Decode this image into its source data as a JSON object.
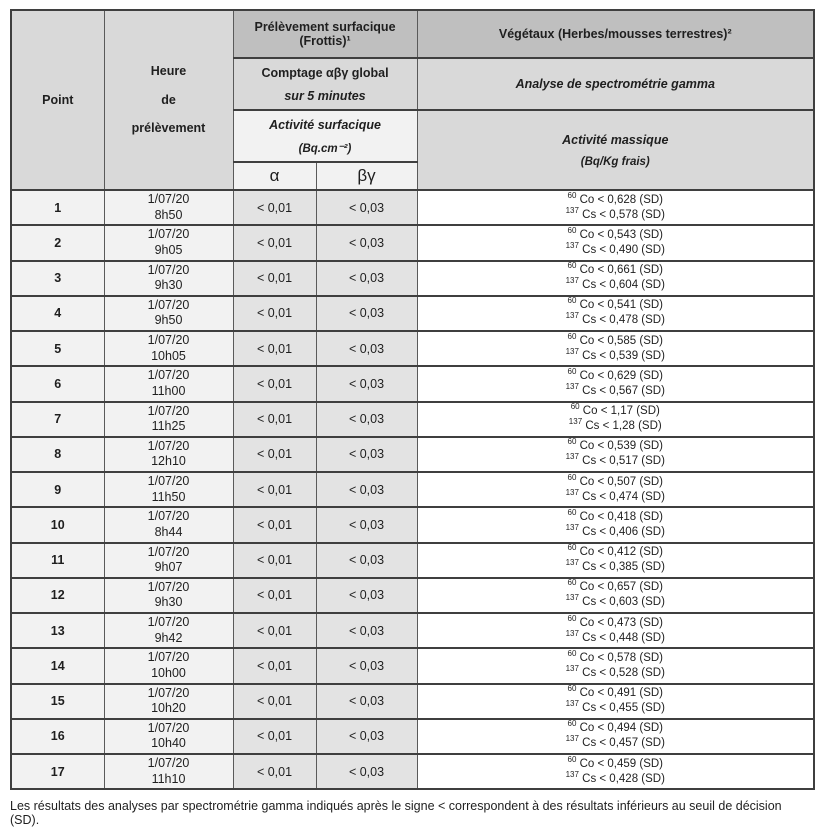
{
  "table": {
    "header": {
      "point": "Point",
      "time_lines": [
        "Heure",
        "de",
        "prélèvement"
      ],
      "surface_group_lines": [
        "Prélèvement surfacique",
        "(Frottis)¹"
      ],
      "vegetaux_group": "Végétaux (Herbes/mousses terrestres)²",
      "counting_lines": [
        "Comptage αβγ global",
        "sur 5 minutes"
      ],
      "gamma_analysis": "Analyse de spectrométrie gamma",
      "surface_activity_lines": [
        "Activité surfacique",
        "(Bq.cm⁻²)"
      ],
      "mass_activity_lines": [
        "Activité massique",
        "(Bq/Kg frais)"
      ],
      "alpha": "α",
      "beta_gamma": "βγ"
    },
    "isotopes": {
      "co_mass": "60",
      "co_symbol": "Co",
      "cs_mass": "137",
      "cs_symbol": "Cs"
    },
    "rows": [
      {
        "point": "1",
        "date": "1/07/20",
        "time": "8h50",
        "alpha": "< 0,01",
        "beta_gamma": "< 0,03",
        "co60": "< 0,628 (SD)",
        "cs137": "< 0,578 (SD)"
      },
      {
        "point": "2",
        "date": "1/07/20",
        "time": "9h05",
        "alpha": "< 0,01",
        "beta_gamma": "< 0,03",
        "co60": "< 0,543 (SD)",
        "cs137": "< 0,490 (SD)"
      },
      {
        "point": "3",
        "date": "1/07/20",
        "time": "9h30",
        "alpha": "< 0,01",
        "beta_gamma": "< 0,03",
        "co60": "< 0,661 (SD)",
        "cs137": "< 0,604 (SD)"
      },
      {
        "point": "4",
        "date": "1/07/20",
        "time": "9h50",
        "alpha": "< 0,01",
        "beta_gamma": "< 0,03",
        "co60": "< 0,541 (SD)",
        "cs137": "< 0,478 (SD)"
      },
      {
        "point": "5",
        "date": "1/07/20",
        "time": "10h05",
        "alpha": "< 0,01",
        "beta_gamma": "< 0,03",
        "co60": "< 0,585 (SD)",
        "cs137": "< 0,539 (SD)"
      },
      {
        "point": "6",
        "date": "1/07/20",
        "time": "11h00",
        "alpha": "< 0,01",
        "beta_gamma": "< 0,03",
        "co60": "< 0,629 (SD)",
        "cs137": "< 0,567 (SD)"
      },
      {
        "point": "7",
        "date": "1/07/20",
        "time": "11h25",
        "alpha": "< 0,01",
        "beta_gamma": "< 0,03",
        "co60": "< 1,17 (SD)",
        "cs137": "< 1,28 (SD)"
      },
      {
        "point": "8",
        "date": "1/07/20",
        "time": "12h10",
        "alpha": "< 0,01",
        "beta_gamma": "< 0,03",
        "co60": "< 0,539 (SD)",
        "cs137": "< 0,517 (SD)"
      },
      {
        "point": "9",
        "date": "1/07/20",
        "time": "11h50",
        "alpha": "< 0,01",
        "beta_gamma": "< 0,03",
        "co60": "< 0,507 (SD)",
        "cs137": "< 0,474 (SD)"
      },
      {
        "point": "10",
        "date": "1/07/20",
        "time": "8h44",
        "alpha": "< 0,01",
        "beta_gamma": "< 0,03",
        "co60": "< 0,418 (SD)",
        "cs137": "< 0,406 (SD)"
      },
      {
        "point": "11",
        "date": "1/07/20",
        "time": "9h07",
        "alpha": "< 0,01",
        "beta_gamma": "< 0,03",
        "co60": "< 0,412 (SD)",
        "cs137": "< 0,385 (SD)"
      },
      {
        "point": "12",
        "date": "1/07/20",
        "time": "9h30",
        "alpha": "< 0,01",
        "beta_gamma": "< 0,03",
        "co60": "< 0,657 (SD)",
        "cs137": "< 0,603 (SD)"
      },
      {
        "point": "13",
        "date": "1/07/20",
        "time": "9h42",
        "alpha": "< 0,01",
        "beta_gamma": "< 0,03",
        "co60": "< 0,473 (SD)",
        "cs137": "< 0,448 (SD)"
      },
      {
        "point": "14",
        "date": "1/07/20",
        "time": "10h00",
        "alpha": "< 0,01",
        "beta_gamma": "< 0,03",
        "co60": "< 0,578 (SD)",
        "cs137": "< 0,528 (SD)"
      },
      {
        "point": "15",
        "date": "1/07/20",
        "time": "10h20",
        "alpha": "< 0,01",
        "beta_gamma": "< 0,03",
        "co60": "< 0,491 (SD)",
        "cs137": "< 0,455 (SD)"
      },
      {
        "point": "16",
        "date": "1/07/20",
        "time": "10h40",
        "alpha": "< 0,01",
        "beta_gamma": "< 0,03",
        "co60": "< 0,494 (SD)",
        "cs137": "< 0,457 (SD)"
      },
      {
        "point": "17",
        "date": "1/07/20",
        "time": "11h10",
        "alpha": "< 0,01",
        "beta_gamma": "< 0,03",
        "co60": "< 0,459 (SD)",
        "cs137": "< 0,428 (SD)"
      }
    ]
  },
  "footnote": "Les résultats des analyses par spectrométrie gamma indiqués après le signe < correspondent à des résultats inférieurs au seuil de décision (SD).",
  "colors": {
    "header_dark": "#bfbfbf",
    "header_light": "#d9d9d9",
    "header_pale": "#f2f2f2",
    "row_left": "#f2f2f2",
    "row_meas": "#e3e3e3",
    "row_veg": "#ffffff",
    "border": "#3f3f3f"
  }
}
